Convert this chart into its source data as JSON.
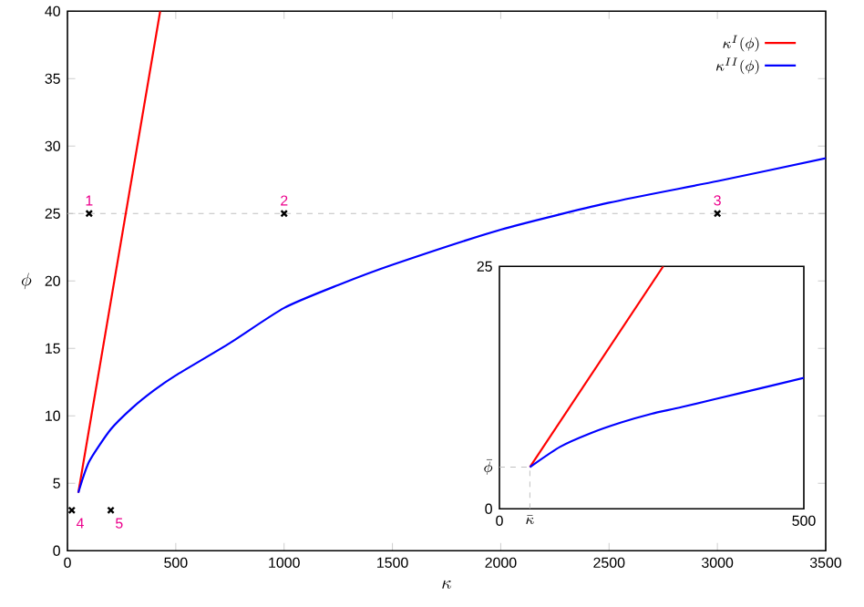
{
  "chart_data": [
    {
      "type": "line",
      "xlabel": "\\kappa",
      "ylabel": "\\phi",
      "xlim": [
        0,
        3500
      ],
      "ylim": [
        0,
        40
      ],
      "xticks": [
        0,
        500,
        1000,
        1500,
        2000,
        2500,
        3000,
        3500
      ],
      "yticks": [
        0,
        5,
        10,
        15,
        20,
        25,
        30,
        35,
        40
      ],
      "legend": "top right",
      "ref_lines": [
        {
          "axis": "y",
          "value": 25,
          "color": "#c0c0c0",
          "line_style": "dashed"
        }
      ],
      "series": [
        {
          "name": "\\kappa^{I}(\\phi)",
          "color": "#ff0000",
          "x": [
            50,
            428
          ],
          "values": [
            4.3,
            40
          ]
        },
        {
          "name": "\\kappa^{II}(\\phi)",
          "color": "#0000ff",
          "x": [
            50,
            100,
            200,
            300,
            400,
            500,
            750,
            1000,
            1250,
            1500,
            2000,
            2500,
            3000,
            3500
          ],
          "values": [
            4.3,
            6.6,
            9.0,
            10.6,
            11.9,
            13.0,
            15.4,
            18.0,
            19.7,
            21.2,
            23.8,
            25.8,
            27.4,
            29.1
          ]
        },
        {
          "type": "scatter",
          "color": "#000000",
          "marker": "cross",
          "x": [
            100,
            1000,
            3000,
            20,
            200
          ],
          "values": [
            25,
            25,
            25,
            3,
            3
          ]
        }
      ],
      "annotations": [
        {
          "text": "1",
          "x": 100,
          "y": 25
        },
        {
          "text": "2",
          "x": 1000,
          "y": 25
        },
        {
          "text": "3",
          "x": 3000,
          "y": 25
        },
        {
          "text": "4",
          "x": 20,
          "y": 3
        },
        {
          "text": "5",
          "x": 200,
          "y": 3
        }
      ]
    },
    {
      "type": "line",
      "xlim": [
        0,
        500
      ],
      "ylim": [
        0,
        25
      ],
      "xticks": [
        0,
        {
          "value": 50,
          "label": "\\bar{\\kappa}"
        },
        500
      ],
      "yticks": [
        0,
        {
          "value": 4.3,
          "label": "\\bar{\\phi}"
        },
        25
      ],
      "ref_lines": [
        {
          "axis": "x",
          "value": 50,
          "color": "#c0c0c0",
          "line_style": "dashed"
        },
        {
          "axis": "y",
          "value": 4.3,
          "color": "#c0c0c0",
          "line_style": "dashed"
        }
      ],
      "series": [
        {
          "color": "#ff0000",
          "x": [
            50,
            269
          ],
          "values": [
            4.3,
            25
          ]
        },
        {
          "color": "#0000ff",
          "x": [
            50,
            100,
            150,
            200,
            250,
            300,
            400,
            500
          ],
          "values": [
            4.3,
            6.4,
            7.8,
            8.9,
            9.8,
            10.5,
            12.0,
            13.5
          ]
        }
      ]
    }
  ]
}
